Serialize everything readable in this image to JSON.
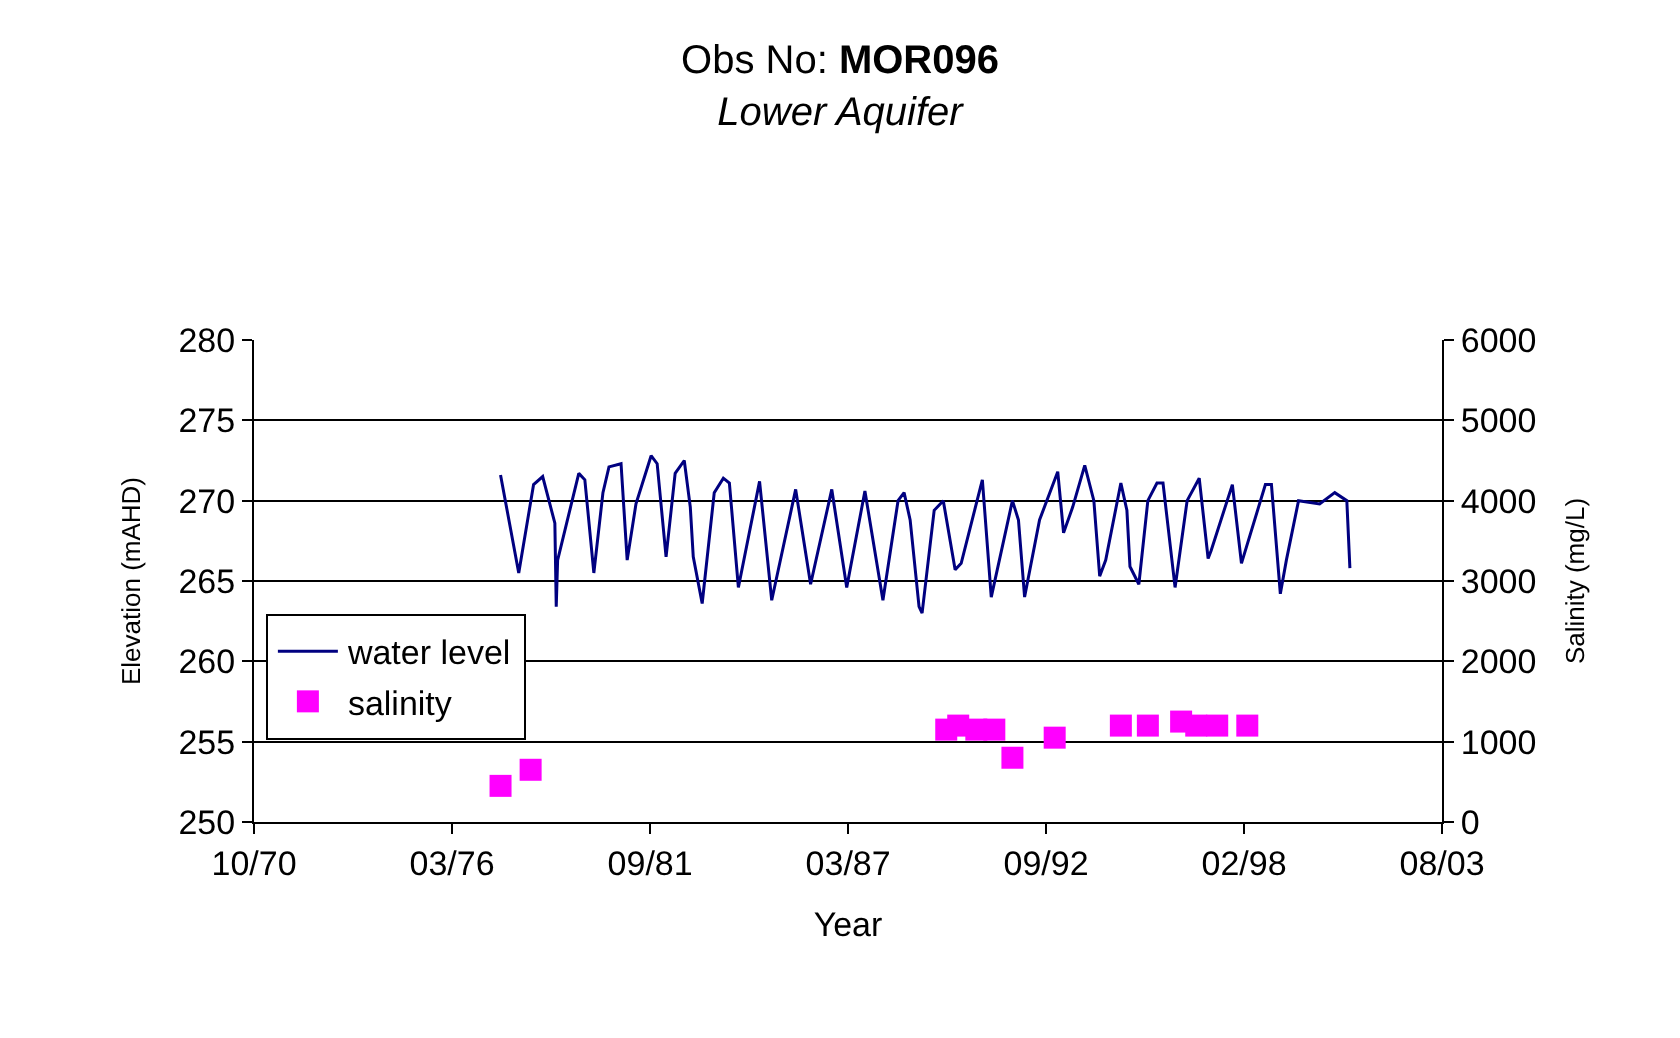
{
  "chart_data": {
    "type": "line",
    "title": "Obs No: MOR096",
    "subtitle": "Lower Aquifer",
    "xlabel": "Year",
    "ylabel": "Elevation (mAHD)",
    "y2label": "Salinity (mg/L)",
    "xlim": [
      "1970-10-05",
      "2003-08-21"
    ],
    "xticks": [
      {
        "value": "1970-10-05",
        "label": "10/70"
      },
      {
        "value": "1976-03-29",
        "label": "03/76"
      },
      {
        "value": "1981-09-21",
        "label": "09/81"
      },
      {
        "value": "1987-03-15",
        "label": "03/87"
      },
      {
        "value": "1992-09-05",
        "label": "09/92"
      },
      {
        "value": "1998-02-27",
        "label": "02/98"
      },
      {
        "value": "2003-08-21",
        "label": "08/03"
      }
    ],
    "ylim": [
      250,
      280
    ],
    "yticks": [
      250,
      255,
      260,
      265,
      270,
      275,
      280
    ],
    "y2lim": [
      0,
      6000
    ],
    "y2ticks": [
      0,
      1000,
      2000,
      3000,
      4000,
      5000,
      6000
    ],
    "grid": "y",
    "legend": "bottom left",
    "series": [
      {
        "name": "water level",
        "color": "#000080",
        "marker": "none",
        "line_style": "solid",
        "x": [
          "1977-08",
          "1978-02",
          "1978-07",
          "1978-10",
          "1979-02-01",
          "1979-02-15",
          "1979-03",
          "1979-10",
          "1979-12",
          "1980-03",
          "1980-06",
          "1980-08",
          "1980-12",
          "1981-02",
          "1981-05",
          "1981-10",
          "1981-12",
          "1982-03",
          "1982-06",
          "1982-09",
          "1982-11",
          "1982-12",
          "1983-03",
          "1983-07",
          "1983-10",
          "1983-12",
          "1984-03",
          "1984-10",
          "1985-02",
          "1985-10",
          "1986-03",
          "1986-10",
          "1987-03",
          "1987-09",
          "1988-03",
          "1988-08",
          "1988-10",
          "1988-12",
          "1989-03",
          "1989-04",
          "1989-08",
          "1989-11",
          "1990-03",
          "1990-05",
          "1990-12",
          "1991-03",
          "1991-10",
          "1991-12",
          "1992-02",
          "1992-07",
          "1993-01",
          "1993-03",
          "1993-06",
          "1993-10",
          "1994-01",
          "1994-03",
          "1994-05",
          "1994-10",
          "1994-12",
          "1995-01",
          "1995-04",
          "1995-07",
          "1995-10",
          "1995-12",
          "1996-04",
          "1996-08",
          "1996-12",
          "1997-03",
          "1997-04",
          "1997-11",
          "1998-02",
          "1998-10",
          "1998-12",
          "1999-03",
          "1999-05",
          "1999-09",
          "2000-04",
          "2000-09",
          "2001-01",
          "2001-02"
        ],
        "values": [
          271.6,
          265.5,
          271.0,
          271.5,
          268.6,
          263.4,
          266.3,
          271.7,
          271.3,
          265.5,
          270.5,
          272.1,
          272.3,
          266.3,
          269.8,
          272.8,
          272.3,
          266.5,
          271.7,
          272.5,
          269.6,
          266.5,
          263.6,
          270.5,
          271.4,
          271.1,
          264.6,
          271.2,
          263.8,
          270.7,
          264.8,
          270.7,
          264.6,
          270.6,
          263.8,
          270.0,
          270.5,
          268.8,
          263.4,
          263.0,
          269.4,
          270.0,
          265.7,
          266.1,
          271.3,
          264.0,
          270.0,
          268.8,
          264.0,
          268.8,
          271.8,
          268.0,
          269.6,
          272.2,
          270.0,
          265.3,
          266.3,
          271.1,
          269.4,
          265.9,
          264.8,
          270.0,
          271.1,
          271.1,
          264.6,
          270.0,
          271.4,
          266.4,
          266.9,
          271.0,
          266.1,
          271.0,
          271.0,
          264.2,
          266.3,
          270.0,
          269.8,
          270.5,
          270.0,
          265.8
        ]
      },
      {
        "name": "salinity",
        "type": "scatter",
        "axis": "y2",
        "color": "#ff00ff",
        "marker": "square",
        "x": [
          "1977-08",
          "1978-06",
          "1989-12",
          "1990-04",
          "1990-10",
          "1991-04",
          "1991-10",
          "1992-12",
          "1994-10",
          "1995-07",
          "1996-06",
          "1996-11",
          "1997-06",
          "1998-04"
        ],
        "values": [
          450,
          650,
          1150,
          1200,
          1150,
          1150,
          800,
          1050,
          1200,
          1200,
          1250,
          1200,
          1200,
          1200
        ]
      }
    ]
  }
}
